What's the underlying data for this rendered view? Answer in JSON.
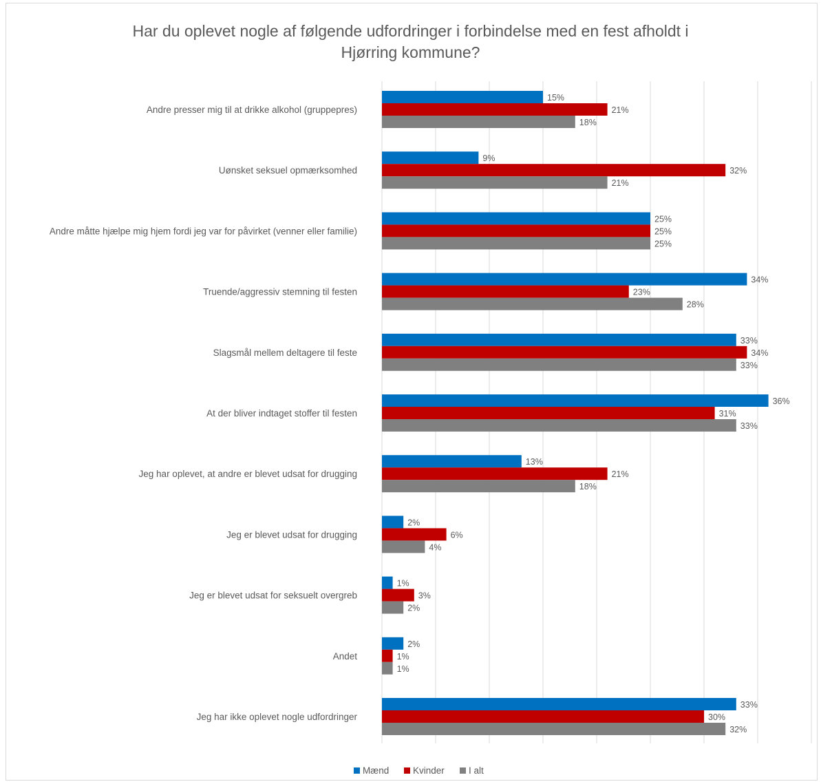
{
  "chart_data": {
    "type": "bar",
    "orientation": "horizontal",
    "title_lines": [
      "Har du oplevet nogle af følgende udfordringer i forbindelse med en fest afholdt i",
      "Hjørring kommune?"
    ],
    "categories": [
      "Andre presser mig til at drikke alkohol (gruppepres)",
      "Uønsket seksuel opmærksomhed",
      "Andre måtte hjælpe mig hjem fordi jeg var for påvirket (venner eller familie)",
      "Truende/aggressiv stemning til festen",
      "Slagsmål mellem deltagere til feste",
      "At der bliver indtaget stoffer til festen",
      "Jeg har oplevet, at andre er blevet udsat for drugging",
      "Jeg er blevet udsat for drugging",
      "Jeg er blevet udsat for seksuelt overgreb",
      "Andet",
      "Jeg har ikke oplevet nogle udfordringer"
    ],
    "series": [
      {
        "name": "Mænd",
        "color": "#0070c0",
        "values": [
          15,
          9,
          25,
          34,
          33,
          36,
          13,
          2,
          1,
          2,
          33
        ]
      },
      {
        "name": "Kvinder",
        "color": "#c00000",
        "values": [
          21,
          32,
          25,
          23,
          34,
          31,
          21,
          6,
          3,
          1,
          30
        ]
      },
      {
        "name": "I alt",
        "color": "#808080",
        "values": [
          18,
          21,
          25,
          28,
          33,
          33,
          18,
          4,
          2,
          1,
          32
        ]
      }
    ],
    "value_suffix": "%",
    "xlim": [
      0,
      40
    ],
    "grid": true,
    "legend_position": "bottom"
  }
}
